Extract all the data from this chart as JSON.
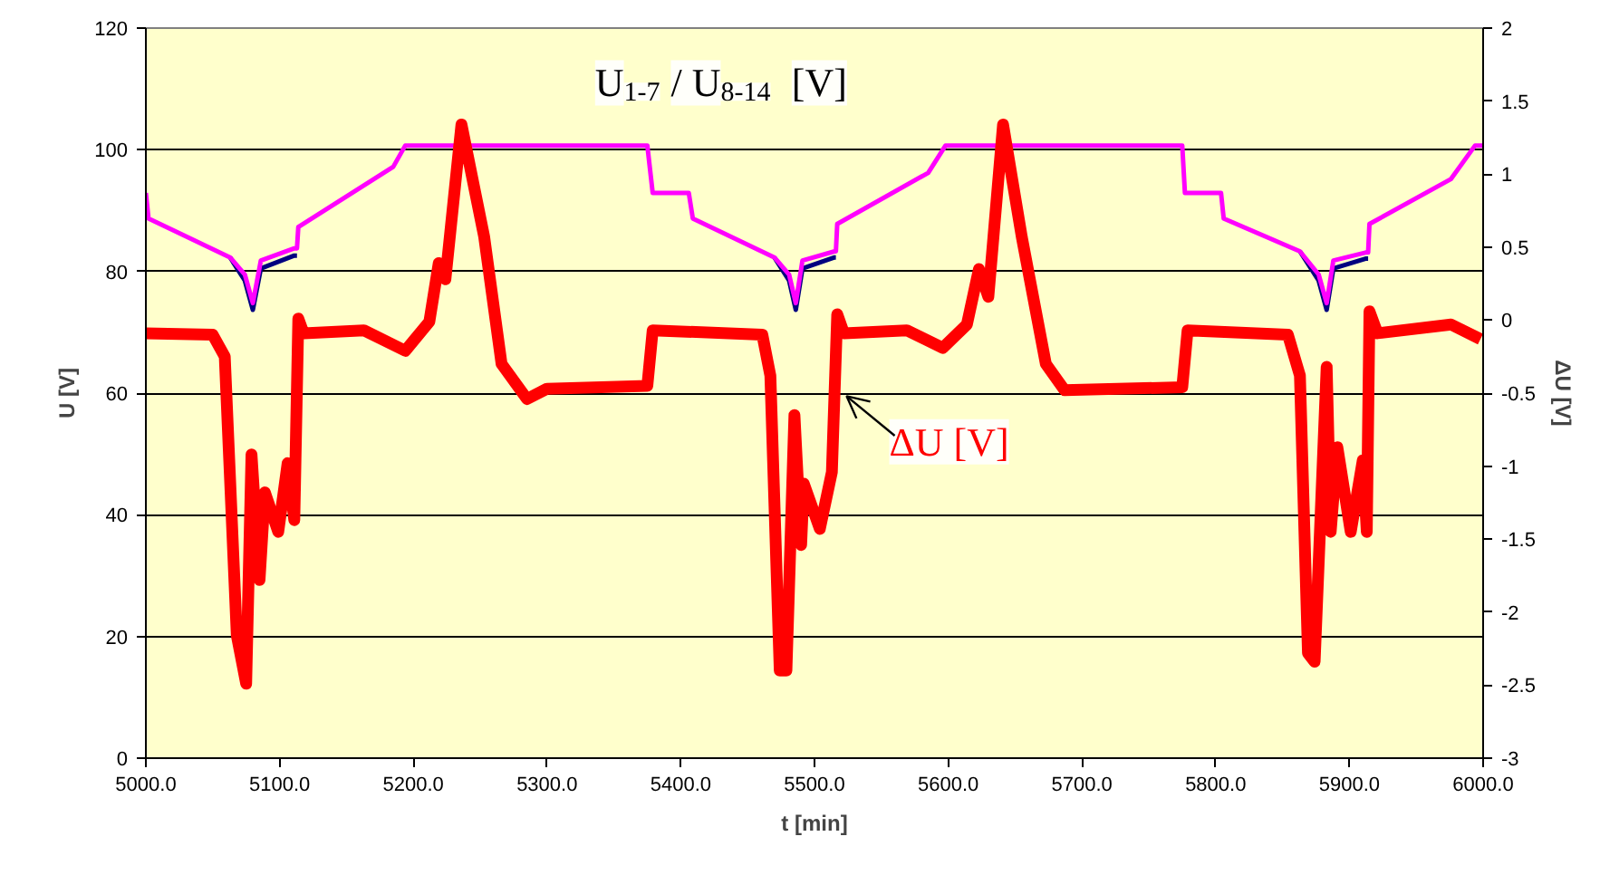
{
  "chart_data": {
    "type": "line",
    "xlabel": "t [min]",
    "ylabel": "U [V]",
    "y2label": "ΔU [V]",
    "annotations": [
      "U$_{1-7}$ / U$_{8-14}$  [V]",
      "ΔU [V]"
    ],
    "xlim": [
      5000,
      6000
    ],
    "xticks": [
      {
        "value": 5000,
        "label": "5000.0"
      },
      {
        "value": 5100,
        "label": "5100.0"
      },
      {
        "value": 5200,
        "label": "5200.0"
      },
      {
        "value": 5300,
        "label": "5300.0"
      },
      {
        "value": 5400,
        "label": "5400.0"
      },
      {
        "value": 5500,
        "label": "5500.0"
      },
      {
        "value": 5600,
        "label": "5600.0"
      },
      {
        "value": 5700,
        "label": "5700.0"
      },
      {
        "value": 5800,
        "label": "5800.0"
      },
      {
        "value": 5900,
        "label": "5900.0"
      },
      {
        "value": 6000,
        "label": "6000.0"
      }
    ],
    "ylim": [
      0,
      120
    ],
    "yticks": [
      0,
      20,
      40,
      60,
      80,
      100,
      120
    ],
    "y2lim": [
      -3,
      2
    ],
    "y2ticks": [
      -3,
      -2.5,
      -2,
      -1.5,
      -1,
      -0.5,
      0,
      0.5,
      1,
      1.5,
      2
    ],
    "grid": "y",
    "marker": "none",
    "line_style": "solid",
    "series": [
      {
        "color": "#000080",
        "x": [
          5063,
          5074,
          5080,
          5086,
          5111,
          5113
        ],
        "values": [
          82.3,
          78.5,
          73.7,
          80.5,
          82.6,
          82.6
        ]
      },
      {
        "color": "#000080",
        "x": [
          5470,
          5481,
          5486,
          5491,
          5515,
          5516
        ],
        "values": [
          82.3,
          78.5,
          73.7,
          80.5,
          82.3,
          82.3
        ]
      },
      {
        "color": "#000080",
        "x": [
          5863,
          5877,
          5883,
          5888,
          5912,
          5914
        ],
        "values": [
          83.3,
          78.5,
          73.7,
          80.5,
          82.1,
          82.1
        ]
      },
      {
        "color": "#ff00ff",
        "x": [
          5000,
          5002,
          5063,
          5074,
          5080,
          5086,
          5111,
          5113,
          5114,
          5185,
          5194,
          5375,
          5379,
          5406,
          5409,
          5470,
          5481,
          5486,
          5491,
          5515,
          5516,
          5517,
          5585,
          5598,
          5775,
          5777,
          5804,
          5806,
          5863,
          5877,
          5883,
          5888,
          5912,
          5914,
          5915,
          5976,
          5994,
          6000
        ],
        "values": [
          92.9,
          88.7,
          82.3,
          79.5,
          74.8,
          81.8,
          83.8,
          83.8,
          87.3,
          97.2,
          100.7,
          100.7,
          92.9,
          92.9,
          88.7,
          82.3,
          79.5,
          74.8,
          81.8,
          83.3,
          83.3,
          87.8,
          96.2,
          100.7,
          100.7,
          92.9,
          92.9,
          88.7,
          83.3,
          79.5,
          74.8,
          81.8,
          83.1,
          83.1,
          87.8,
          95.2,
          100.7,
          100.7
        ]
      },
      {
        "color": "#ff0000",
        "axis": "y2",
        "x": [
          5000,
          5050,
          5059,
          5068,
          5075,
          5079,
          5085,
          5089,
          5099,
          5106,
          5111,
          5114,
          5118,
          5163,
          5194,
          5212,
          5219,
          5224,
          5236,
          5253,
          5266,
          5285,
          5300,
          5375,
          5379,
          5461,
          5467,
          5474,
          5479,
          5485,
          5490,
          5492,
          5504,
          5513,
          5517,
          5522,
          5569,
          5596,
          5614,
          5623,
          5630,
          5641,
          5655,
          5673,
          5687,
          5775,
          5779,
          5854,
          5863,
          5869,
          5874,
          5883,
          5886,
          5891,
          5901,
          5910,
          5913,
          5915,
          5921,
          5976,
          5998
        ],
        "values": [
          -0.09,
          -0.1,
          -0.25,
          -2.16,
          -2.49,
          -0.92,
          -1.78,
          -1.18,
          -1.45,
          -0.98,
          -1.37,
          0.01,
          -0.09,
          -0.07,
          -0.21,
          -0.01,
          0.39,
          0.28,
          1.34,
          0.57,
          -0.3,
          -0.54,
          -0.47,
          -0.45,
          -0.07,
          -0.1,
          -0.38,
          -2.4,
          -2.4,
          -0.65,
          -1.54,
          -1.12,
          -1.43,
          -1.04,
          0.04,
          -0.09,
          -0.07,
          -0.19,
          -0.03,
          0.35,
          0.16,
          1.34,
          0.57,
          -0.3,
          -0.48,
          -0.46,
          -0.07,
          -0.1,
          -0.38,
          -2.28,
          -2.34,
          -0.32,
          -1.45,
          -0.87,
          -1.45,
          -0.96,
          -1.45,
          0.06,
          -0.09,
          -0.03,
          -0.13
        ]
      }
    ]
  }
}
